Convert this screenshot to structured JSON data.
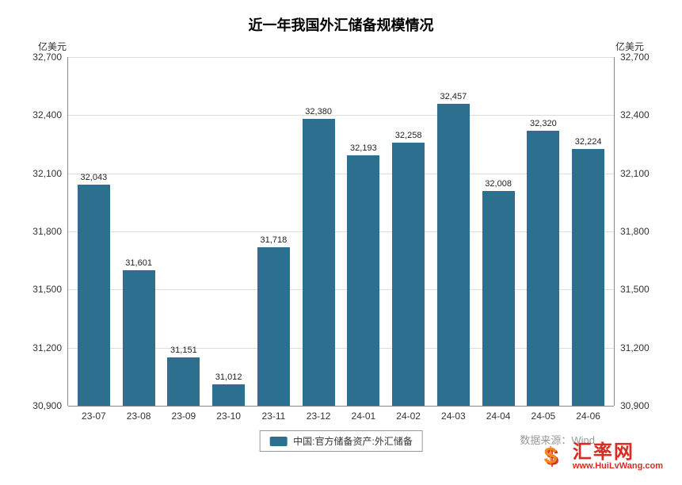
{
  "chart": {
    "type": "bar",
    "title": "近一年我国外汇储备规模情况",
    "title_fontsize": 18,
    "title_fontweight": "bold",
    "y_axis": {
      "unit_label_left": "亿美元",
      "unit_label_right": "亿美元",
      "min": 30900,
      "max": 32700,
      "tick_step": 300,
      "ticks": [
        "32,700",
        "32,400",
        "32,100",
        "31,800",
        "31,500",
        "31,200",
        "30,900"
      ],
      "tick_values": [
        32700,
        32400,
        32100,
        31800,
        31500,
        31200,
        30900
      ],
      "grid_color": "#dddddd",
      "axis_line_color": "#888888",
      "tick_fontsize": 12,
      "tick_color": "#333333"
    },
    "bars": {
      "color": "#2d6f8e",
      "width_fraction": 0.72,
      "value_label_fontsize": 11,
      "value_label_color": "#222222",
      "x_label_fontsize": 12,
      "x_label_color": "#333333"
    },
    "categories": [
      "23-07",
      "23-08",
      "23-09",
      "23-10",
      "23-11",
      "23-12",
      "24-01",
      "24-02",
      "24-03",
      "24-04",
      "24-05",
      "24-06"
    ],
    "values": [
      32043,
      31601,
      31151,
      31012,
      31718,
      32380,
      32193,
      32258,
      32457,
      32008,
      32320,
      32224
    ],
    "value_labels": [
      "32,043",
      "31,601",
      "31,151",
      "31,012",
      "31,718",
      "32,380",
      "32,193",
      "32,258",
      "32,457",
      "32,008",
      "32,320",
      "32,224"
    ],
    "legend": {
      "label": "中国:官方储备资产:外汇储备",
      "swatch_color": "#2d6f8e",
      "border_color": "#999999",
      "fontsize": 12
    },
    "background_color": "#ffffff"
  },
  "source_note": "数据来源：Wind",
  "watermark": {
    "brand_text": "汇率网",
    "brand_color": "#d92b22",
    "accent_color": "#ec8c1d",
    "url_text": "www.HuiLvWang.com"
  }
}
